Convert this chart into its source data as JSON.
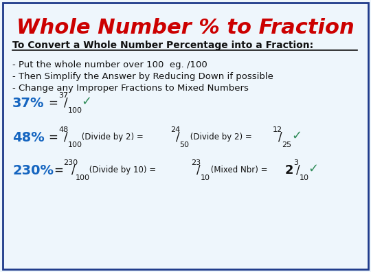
{
  "title": "Whole Number % to Fraction",
  "title_color": "#CC0000",
  "background_color": "#EEF6FC",
  "border_color": "#1E3A8A",
  "subtitle": "To Convert a Whole Number Percentage into a Fraction:",
  "bullets": [
    "- Put the whole number over 100  eg. /100",
    "- Then Simplify the Answer by Reducing Down if possible",
    "- Change any Improper Fractions to Mixed Numbers"
  ],
  "blue_color": "#1565C0",
  "black_color": "#111111",
  "green_color": "#2E8B57"
}
